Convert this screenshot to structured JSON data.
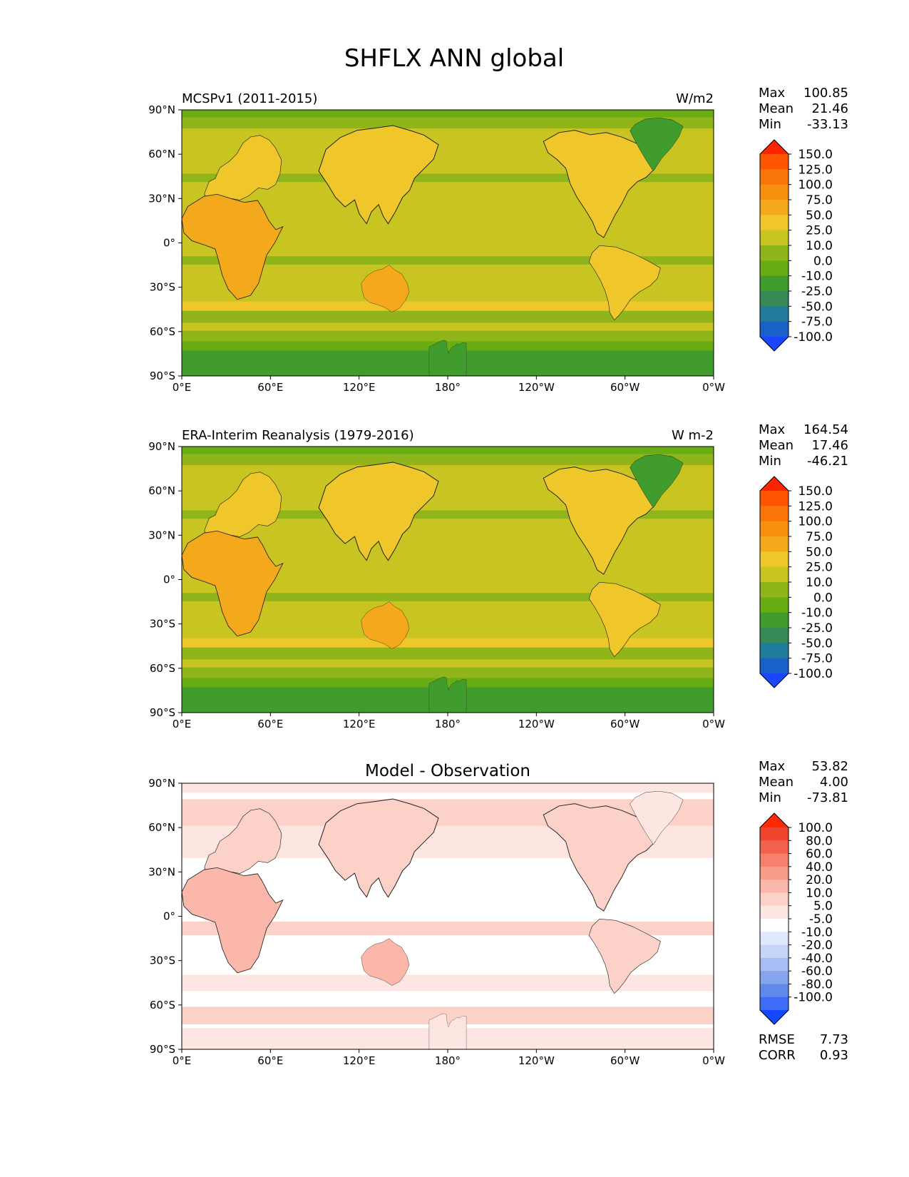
{
  "title": "SHFLX ANN global",
  "x_ticks": [
    "0°E",
    "60°E",
    "120°E",
    "180°",
    "120°W",
    "60°W",
    "0°W"
  ],
  "y_ticks": [
    "90°N",
    "60°N",
    "30°N",
    "0°",
    "30°S",
    "60°S",
    "90°S"
  ],
  "colors": {
    "field_levels": [
      "#1a46ff",
      "#1960c8",
      "#217c9c",
      "#368a55",
      "#409c2c",
      "#68ad14",
      "#8fb51a",
      "#c8c421",
      "#f0c72a",
      "#f4a81c",
      "#f7900f",
      "#fa7507",
      "#fd5402",
      "#ff2400"
    ],
    "diff_levels": [
      "#1547ff",
      "#3d6df5",
      "#6089eb",
      "#86a5ef",
      "#a8bdf4",
      "#c8d5fa",
      "#e2e8fc",
      "#ffffff",
      "#fde6e2",
      "#fcd2c8",
      "#fbb7a9",
      "#f99b89",
      "#f6806b",
      "#f2614b",
      "#f0462e",
      "#ff2a05"
    ]
  },
  "panels": [
    {
      "id": "model",
      "left_title": "MCSPv1 (2011-2015)",
      "center_title": "",
      "units": "W/m2",
      "stats": [
        {
          "label": "Max",
          "value": "100.85"
        },
        {
          "label": "Mean",
          "value": "21.46"
        },
        {
          "label": "Min",
          "value": "-33.13"
        }
      ],
      "colorbar_labels": [
        "150.0",
        "125.0",
        "100.0",
        "75.0",
        "50.0",
        "25.0",
        "10.0",
        "0.0",
        "-10.0",
        "-25.0",
        "-50.0",
        "-75.0",
        "-100.0"
      ],
      "extra_stats": []
    },
    {
      "id": "obs",
      "left_title": "ERA-Interim Reanalysis (1979-2016)",
      "center_title": "",
      "units": "W m-2",
      "stats": [
        {
          "label": "Max",
          "value": "164.54"
        },
        {
          "label": "Mean",
          "value": "17.46"
        },
        {
          "label": "Min",
          "value": "-46.21"
        }
      ],
      "colorbar_labels": [
        "150.0",
        "125.0",
        "100.0",
        "75.0",
        "50.0",
        "25.0",
        "10.0",
        "0.0",
        "-10.0",
        "-25.0",
        "-50.0",
        "-75.0",
        "-100.0"
      ],
      "extra_stats": []
    },
    {
      "id": "diff",
      "left_title": "",
      "center_title": "Model - Observation",
      "units": "",
      "stats": [
        {
          "label": "Max",
          "value": "53.82"
        },
        {
          "label": "Mean",
          "value": "4.00"
        },
        {
          "label": "Min",
          "value": "-73.81"
        }
      ],
      "colorbar_labels": [
        "100.0",
        "80.0",
        "60.0",
        "40.0",
        "20.0",
        "10.0",
        "5.0",
        "-5.0",
        "-10.0",
        "-20.0",
        "-40.0",
        "-60.0",
        "-80.0",
        "-100.0"
      ],
      "extra_stats": [
        {
          "label": "RMSE",
          "value": "7.73"
        },
        {
          "label": "CORR",
          "value": "0.93"
        }
      ]
    }
  ]
}
